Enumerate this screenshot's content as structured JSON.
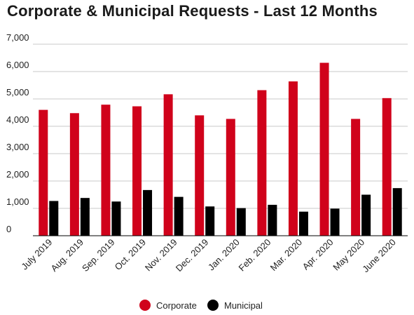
{
  "chart_data": {
    "type": "bar",
    "title": "Corporate & Municipal Requests - Last 12 Months",
    "xlabel": "",
    "ylabel": "",
    "ylim": [
      0,
      7000
    ],
    "yticks": [
      "0",
      "1,000",
      "2,000",
      "3,000",
      "4,000",
      "5,000",
      "6,000",
      "7,000"
    ],
    "ytick_values": [
      0,
      1000,
      2000,
      3000,
      4000,
      5000,
      6000,
      7000
    ],
    "grid": true,
    "legend_position": "bottom",
    "categories": [
      "July 2019",
      "Aug. 2019",
      "Sep. 2019",
      "Oct. 2019",
      "Nov. 2019",
      "Dec. 2019",
      "Jan. 2020",
      "Feb. 2020",
      "Mar. 2020",
      "Apr. 2020",
      "May 2020",
      "June 2020"
    ],
    "series": [
      {
        "name": "Corporate",
        "color": "#d0021b",
        "values": [
          4600,
          4480,
          4790,
          4730,
          5170,
          4400,
          4270,
          5320,
          5640,
          6320,
          4270,
          5030
        ]
      },
      {
        "name": "Municipal",
        "color": "#000000",
        "values": [
          1270,
          1380,
          1250,
          1670,
          1420,
          1070,
          1010,
          1130,
          880,
          990,
          1500,
          1740
        ]
      }
    ]
  }
}
